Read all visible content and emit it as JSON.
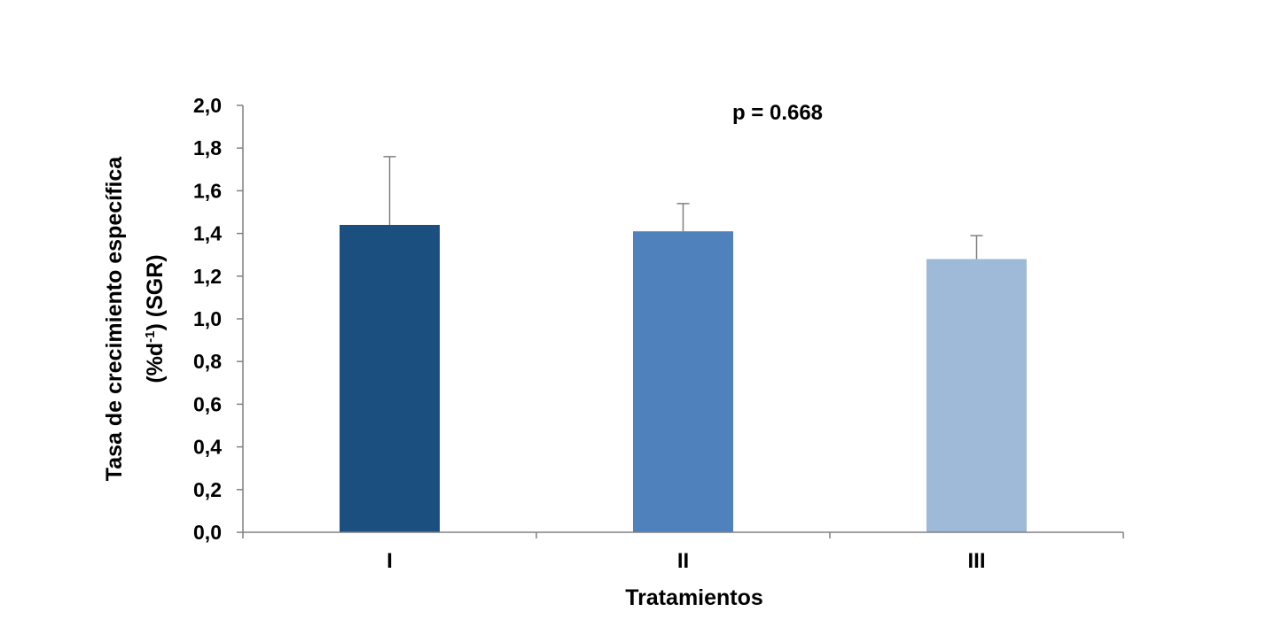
{
  "chart_data": {
    "type": "bar",
    "title": "",
    "xlabel": "Tratamientos",
    "ylabel_line1": "Tasa de crecimiento específica",
    "ylabel_line2_pre": "(%d",
    "ylabel_line2_sup": "-1",
    "ylabel_line2_post": ") (SGR)",
    "ylim": [
      0,
      2.0
    ],
    "ytick_step": 0.2,
    "ytick_labels": [
      "0,0",
      "0,2",
      "0,4",
      "0,6",
      "0,8",
      "1,0",
      "1,2",
      "1,4",
      "1,6",
      "1,8",
      "2,0"
    ],
    "categories": [
      "I",
      "II",
      "III"
    ],
    "values": [
      1.44,
      1.41,
      1.28
    ],
    "error_upper": [
      0.32,
      0.13,
      0.11
    ],
    "bar_colors": [
      "#1a4f80",
      "#4f81bd",
      "#9fbad9"
    ],
    "error_bar_color": "#808080",
    "axis_color": "#808080",
    "annotation": "p = 0.668",
    "grid": false,
    "legend": "none"
  }
}
